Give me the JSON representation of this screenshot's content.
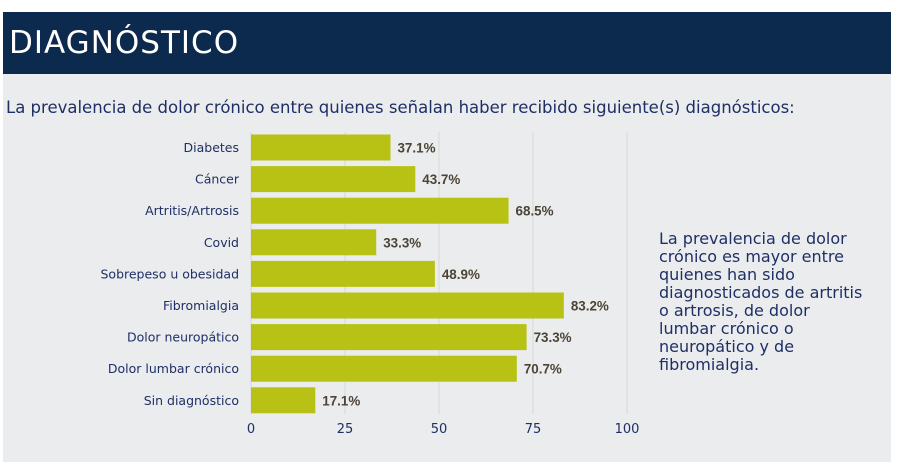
{
  "header": {
    "title": "DIAGNÓSTICO",
    "subtitle": "La prevalencia de dolor crónico entre quienes señalan haber recibido siguiente(s) diagnósticos:"
  },
  "note": "La prevalencia de dolor crónico es mayor entre quienes han sido diagnosticados de artritis o artrosis, de dolor lumbar crónico o neuropático y de fibromialgia.",
  "colors": {
    "header_bg": "#0c2a4d",
    "bar": "#b8c215",
    "text": "#1f2f66",
    "value_label": "#4d4436"
  },
  "chart_data": {
    "type": "bar",
    "orientation": "horizontal",
    "categories": [
      "Diabetes",
      "Cáncer",
      "Artritis/Artrosis",
      "Covid",
      "Sobrepeso u obesidad",
      "Fibromialgia",
      "Dolor neuropático",
      "Dolor lumbar crónico",
      "Sin diagnóstico"
    ],
    "values": [
      37.1,
      43.7,
      68.5,
      33.3,
      48.9,
      83.2,
      73.3,
      70.7,
      17.1
    ],
    "value_labels": [
      "37.1%",
      "43.7%",
      "68.5%",
      "33.3%",
      "48.9%",
      "83.2%",
      "73.3%",
      "70.7%",
      "17.1%"
    ],
    "xlim": [
      0,
      100
    ],
    "xticks": [
      0,
      25,
      50,
      75,
      100
    ],
    "xtick_labels": [
      "0",
      "25",
      "50",
      "75",
      "100"
    ],
    "grid": true,
    "legend": "none"
  }
}
